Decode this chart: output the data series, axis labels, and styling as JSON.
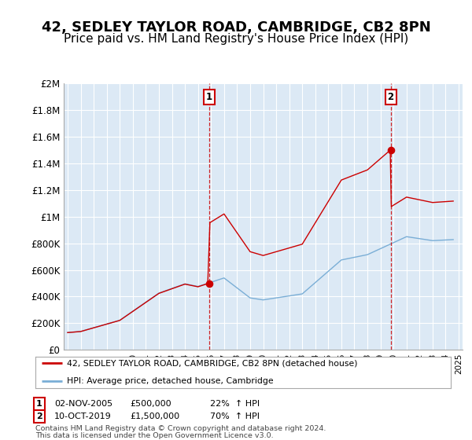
{
  "title": "42, SEDLEY TAYLOR ROAD, CAMBRIDGE, CB2 8PN",
  "subtitle": "Price paid vs. HM Land Registry's House Price Index (HPI)",
  "title_fontsize": 13,
  "subtitle_fontsize": 11,
  "bg_color": "#ffffff",
  "plot_bg_color": "#dce9f5",
  "grid_color": "#ffffff",
  "red_color": "#cc0000",
  "blue_color": "#7aaed6",
  "ylim": [
    0,
    2000000
  ],
  "yticks": [
    0,
    200000,
    400000,
    600000,
    800000,
    1000000,
    1200000,
    1400000,
    1600000,
    1800000,
    2000000
  ],
  "ytick_labels": [
    "£0",
    "£200K",
    "£400K",
    "£600K",
    "£800K",
    "£1M",
    "£1.2M",
    "£1.4M",
    "£1.6M",
    "£1.8M",
    "£2M"
  ],
  "sale1_year": 2005.84,
  "sale1_price": 500000,
  "sale1_label": "1",
  "sale1_date": "02-NOV-2005",
  "sale1_pct": "22%",
  "sale2_year": 2019.78,
  "sale2_price": 1500000,
  "sale2_label": "2",
  "sale2_date": "10-OCT-2019",
  "sale2_pct": "70%",
  "legend_line1": "42, SEDLEY TAYLOR ROAD, CAMBRIDGE, CB2 8PN (detached house)",
  "legend_line2": "HPI: Average price, detached house, Cambridge",
  "footer1": "Contains HM Land Registry data © Crown copyright and database right 2024.",
  "footer2": "This data is licensed under the Open Government Licence v3.0.",
  "xlim_left": 1994.7,
  "xlim_right": 2025.3
}
